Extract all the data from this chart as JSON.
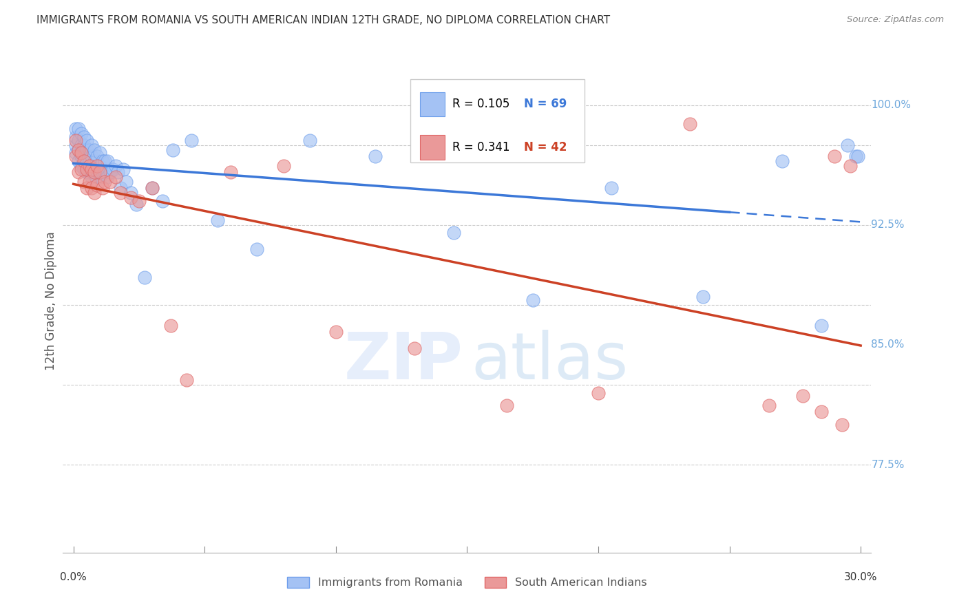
{
  "title": "IMMIGRANTS FROM ROMANIA VS SOUTH AMERICAN INDIAN 12TH GRADE, NO DIPLOMA CORRELATION CHART",
  "source": "Source: ZipAtlas.com",
  "ylabel": "12th Grade, No Diploma",
  "xlim": [
    0.0,
    0.3
  ],
  "ylim": [
    0.72,
    1.035
  ],
  "blue_scatter_color": "#a4c2f4",
  "blue_edge_color": "#6d9eeb",
  "pink_scatter_color": "#ea9999",
  "pink_edge_color": "#e06666",
  "blue_line_color": "#3c78d8",
  "pink_line_color": "#cc4125",
  "right_label_color": "#6fa8dc",
  "title_color": "#333333",
  "legend_label_romania": "Immigrants from Romania",
  "legend_label_indian": "South American Indians",
  "romania_x": [
    0.001,
    0.001,
    0.001,
    0.001,
    0.002,
    0.002,
    0.002,
    0.002,
    0.003,
    0.003,
    0.003,
    0.003,
    0.004,
    0.004,
    0.004,
    0.004,
    0.005,
    0.005,
    0.005,
    0.005,
    0.006,
    0.006,
    0.006,
    0.007,
    0.007,
    0.007,
    0.007,
    0.008,
    0.008,
    0.008,
    0.009,
    0.009,
    0.009,
    0.01,
    0.01,
    0.01,
    0.011,
    0.011,
    0.012,
    0.012,
    0.013,
    0.013,
    0.014,
    0.015,
    0.016,
    0.017,
    0.018,
    0.019,
    0.02,
    0.022,
    0.024,
    0.027,
    0.03,
    0.034,
    0.038,
    0.045,
    0.055,
    0.07,
    0.09,
    0.115,
    0.145,
    0.175,
    0.205,
    0.24,
    0.27,
    0.285,
    0.295,
    0.298,
    0.299
  ],
  "romania_y": [
    0.97,
    0.975,
    0.98,
    0.985,
    0.965,
    0.972,
    0.978,
    0.985,
    0.962,
    0.968,
    0.975,
    0.982,
    0.96,
    0.968,
    0.975,
    0.98,
    0.958,
    0.965,
    0.972,
    0.978,
    0.958,
    0.965,
    0.972,
    0.955,
    0.962,
    0.968,
    0.975,
    0.958,
    0.965,
    0.972,
    0.955,
    0.962,
    0.968,
    0.955,
    0.962,
    0.97,
    0.958,
    0.965,
    0.958,
    0.965,
    0.955,
    0.965,
    0.958,
    0.96,
    0.962,
    0.958,
    0.948,
    0.96,
    0.952,
    0.945,
    0.938,
    0.892,
    0.948,
    0.94,
    0.972,
    0.978,
    0.928,
    0.91,
    0.978,
    0.968,
    0.92,
    0.878,
    0.948,
    0.88,
    0.965,
    0.862,
    0.975,
    0.968,
    0.968
  ],
  "indian_x": [
    0.001,
    0.001,
    0.002,
    0.002,
    0.003,
    0.003,
    0.004,
    0.004,
    0.005,
    0.005,
    0.006,
    0.006,
    0.007,
    0.007,
    0.008,
    0.008,
    0.009,
    0.009,
    0.01,
    0.011,
    0.012,
    0.014,
    0.016,
    0.018,
    0.022,
    0.025,
    0.03,
    0.037,
    0.043,
    0.06,
    0.08,
    0.1,
    0.13,
    0.165,
    0.2,
    0.235,
    0.265,
    0.278,
    0.285,
    0.29,
    0.293,
    0.296
  ],
  "indian_y": [
    0.968,
    0.978,
    0.958,
    0.972,
    0.96,
    0.97,
    0.952,
    0.965,
    0.948,
    0.96,
    0.952,
    0.962,
    0.948,
    0.96,
    0.945,
    0.958,
    0.95,
    0.962,
    0.958,
    0.948,
    0.952,
    0.952,
    0.955,
    0.945,
    0.942,
    0.94,
    0.948,
    0.862,
    0.828,
    0.958,
    0.962,
    0.858,
    0.848,
    0.812,
    0.82,
    0.988,
    0.812,
    0.818,
    0.808,
    0.968,
    0.8,
    0.962
  ]
}
